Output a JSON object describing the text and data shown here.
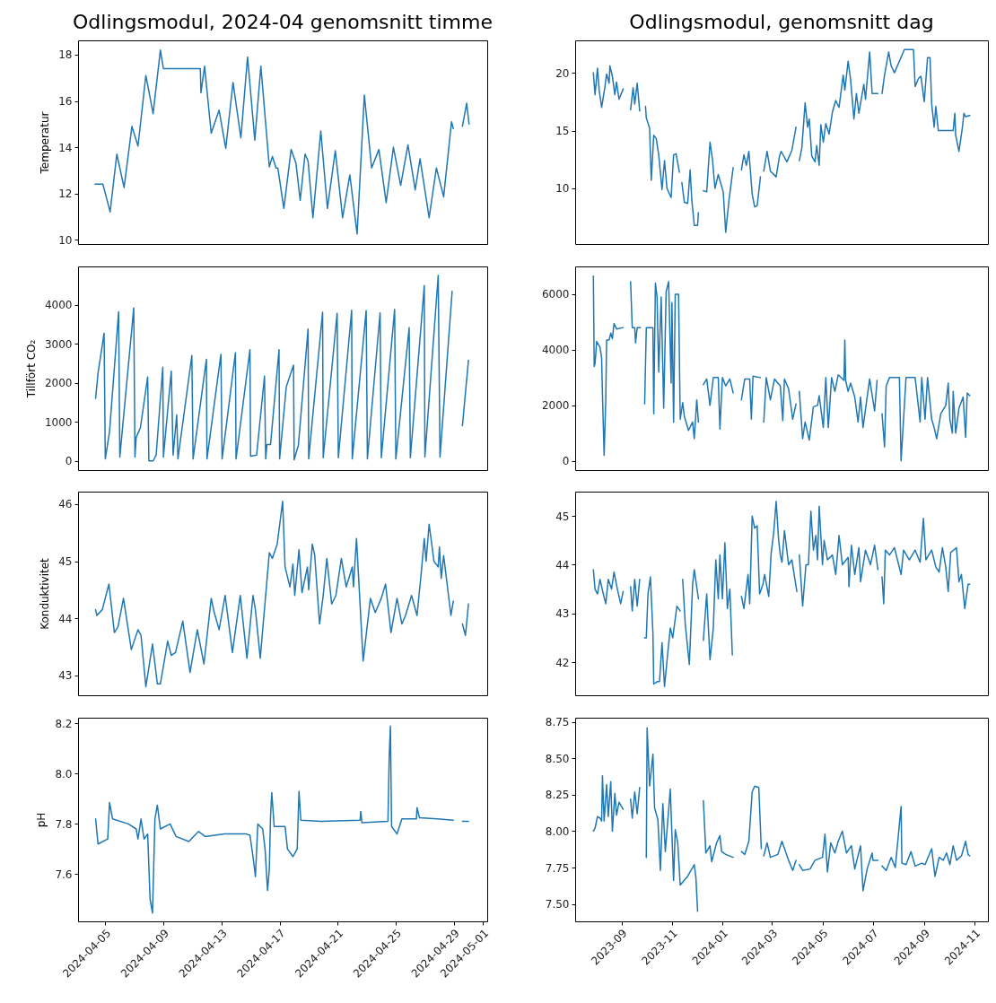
{
  "chart_data": [
    {
      "type": "line",
      "title": "Odlingsmodul, 2024-04 genomsnitt timme",
      "ylabel": "Temperatur",
      "tick_labels": "y",
      "xlim": [
        "2024-04-03T03:00",
        "2024-05-01T07:00"
      ],
      "ylim": [
        9.81,
        18.62
      ],
      "yticks": [
        10,
        12,
        14,
        16,
        18
      ],
      "x": [
        "2024-04-04T07:00",
        "2024-04-04T20:00",
        "2024-04-05T08:00",
        "2024-04-05T19:00",
        "2024-04-06T07:00",
        "2024-04-06T20:00",
        "2024-04-07T06:00",
        "2024-04-07T19:00",
        "2024-04-08T07:00",
        "2024-04-08T19:00",
        "2024-04-09T00:00",
        "2024-04-11T13:00",
        "2024-04-11T14:00",
        "2024-04-11T20:00",
        "2024-04-12T07:00",
        "2024-04-12T20:00",
        "2024-04-13T07:00",
        "2024-04-13T19:00",
        "2024-04-14T08:00",
        "2024-04-14T19:00",
        "2024-04-15T07:00",
        "2024-04-15T17:00",
        "2024-04-16T07:00",
        "2024-04-16T12:00",
        "2024-04-16T18:00",
        "2024-04-16T21:00",
        "2024-04-17T07:00",
        "2024-04-17T19:00",
        "2024-04-18T03:00",
        "2024-04-18T10:00",
        "2024-04-18T18:00",
        "2024-04-18T23:00",
        "2024-04-19T07:00",
        "2024-04-19T20:00",
        "2024-04-20T07:00",
        "2024-04-20T20:00",
        "2024-04-21T08:00",
        "2024-04-21T20:00",
        "2024-04-22T08:00",
        "2024-04-22T20:00",
        "2024-04-23T08:00",
        "2024-04-23T20:00",
        "2024-04-24T08:00",
        "2024-04-24T20:00",
        "2024-04-25T08:00",
        "2024-04-25T20:00",
        "2024-04-26T08:00",
        "2024-04-26T16:00",
        "2024-04-27T07:00",
        "2024-04-27T19:00",
        "2024-04-28T07:00",
        "2024-04-28T20:00",
        "2024-04-28T23:00",
        "2024-04-29T06:00",
        "2024-04-29T14:00",
        "2024-04-29T21:00",
        "2024-04-30T01:00"
      ],
      "series": [
        {
          "color": "#1f77b4",
          "values": [
            12.4,
            12.4,
            11.2,
            13.7,
            12.25,
            14.9,
            14.05,
            17.1,
            15.45,
            18.2,
            17.4,
            17.4,
            16.35,
            17.5,
            14.6,
            15.6,
            13.95,
            16.8,
            14.4,
            17.9,
            14.3,
            17.5,
            13.15,
            13.6,
            13.1,
            13.1,
            11.35,
            13.9,
            13.3,
            11.7,
            13.7,
            13.4,
            10.95,
            14.7,
            11.35,
            13.85,
            10.95,
            12.8,
            10.25,
            16.25,
            13.1,
            13.9,
            11.6,
            14.0,
            12.35,
            14.1,
            12.15,
            13.5,
            10.95,
            13.1,
            11.85,
            15.1,
            14.8,
            null,
            14.9,
            15.9,
            15.0
          ]
        }
      ]
    },
    {
      "type": "line",
      "title": "Odlingsmodul, genomsnitt dag",
      "tick_labels": "y",
      "xlim": [
        "2023-07-07",
        "2024-11-17"
      ],
      "ylim": [
        5.19,
        22.8
      ],
      "yticks": [
        10,
        15,
        20
      ],
      "x": [
        "2023-07-29",
        "2023-07-31",
        "2023-08-03",
        "2023-08-05",
        "2023-08-08",
        "2023-08-12",
        "2023-08-14",
        "2023-08-17",
        "2023-08-18",
        "2023-08-21",
        "2023-08-24",
        "2023-08-26",
        "2023-08-29",
        "2023-09-03",
        "2023-09-08",
        "2023-09-12",
        "2023-09-15",
        "2023-09-17",
        "2023-09-20",
        "2023-09-23",
        "2023-09-27",
        "2023-09-30",
        "2023-10-01",
        "2023-10-05",
        "2023-10-07",
        "2023-10-10",
        "2023-10-13",
        "2023-10-16",
        "2023-10-20",
        "2023-10-23",
        "2023-10-26",
        "2023-10-31",
        "2023-11-03",
        "2023-11-06",
        "2023-11-10",
        "2023-11-11",
        "2023-11-13",
        "2023-11-16",
        "2023-11-20",
        "2023-11-23",
        "2023-11-25",
        "2023-11-28",
        "2023-12-02",
        "2023-12-03",
        "2023-12-06",
        "2023-12-09",
        "2023-12-13",
        "2023-12-17",
        "2023-12-20",
        "2023-12-23",
        "2023-12-27",
        "2024-01-02",
        "2024-01-05",
        "2024-01-09",
        "2024-01-14",
        "2024-01-20",
        "2024-01-24",
        "2024-01-27",
        "2024-01-30",
        "2024-02-02",
        "2024-02-06",
        "2024-02-09",
        "2024-02-12",
        "2024-02-16",
        "2024-02-18",
        "2024-02-20",
        "2024-02-24",
        "2024-02-28",
        "2024-03-06",
        "2024-03-10",
        "2024-03-12",
        "2024-03-19",
        "2024-03-25",
        "2024-03-30",
        "2024-04-01",
        "2024-04-03",
        "2024-04-06",
        "2024-04-10",
        "2024-04-13",
        "2024-04-15",
        "2024-04-18",
        "2024-04-22",
        "2024-04-24",
        "2024-04-27",
        "2024-04-29",
        "2024-05-02",
        "2024-05-05",
        "2024-05-09",
        "2024-05-13",
        "2024-05-17",
        "2024-05-21",
        "2024-05-26",
        "2024-05-28",
        "2024-06-01",
        "2024-06-04",
        "2024-06-08",
        "2024-06-11",
        "2024-06-14",
        "2024-06-20",
        "2024-06-22",
        "2024-06-27",
        "2024-06-30",
        "2024-07-07",
        "2024-07-10",
        "2024-07-12",
        "2024-07-15",
        "2024-07-20",
        "2024-07-23",
        "2024-07-27",
        "2024-07-30",
        "2024-08-05",
        "2024-08-08",
        "2024-08-19",
        "2024-08-21",
        "2024-08-25",
        "2024-08-28",
        "2024-09-01",
        "2024-09-05",
        "2024-09-08",
        "2024-09-10",
        "2024-09-13",
        "2024-09-15",
        "2024-09-18",
        "2024-10-06",
        "2024-10-08",
        "2024-10-09",
        "2024-10-13",
        "2024-10-17",
        "2024-10-19",
        "2024-10-21",
        "2024-10-26"
      ],
      "series": [
        {
          "color": "#1f77b4",
          "values": [
            20.0,
            18.1,
            20.4,
            18.5,
            17.0,
            18.8,
            19.9,
            19.1,
            20.6,
            19.7,
            18.1,
            19.2,
            17.7,
            18.6,
            null,
            16.8,
            18.7,
            17.3,
            19.1,
            16.7,
            null,
            17.1,
            16.1,
            15.2,
            10.7,
            14.6,
            14.3,
            12.9,
            9.9,
            12.4,
            10.0,
            9.2,
            12.9,
            13.0,
            11.4,
            null,
            10.5,
            8.8,
            8.7,
            11.6,
            9.0,
            6.8,
            6.8,
            7.9,
            null,
            9.8,
            9.7,
            14.0,
            12.5,
            10.0,
            11.2,
            9.7,
            6.2,
            9.0,
            11.8,
            null,
            11.6,
            12.9,
            12.0,
            13.2,
            9.5,
            8.4,
            8.5,
            11.0,
            null,
            11.5,
            13.2,
            11.5,
            11.0,
            12.8,
            13.2,
            12.3,
            13.3,
            15.3,
            null,
            12.4,
            13.5,
            17.4,
            15.3,
            16.0,
            12.8,
            12.3,
            13.7,
            12.0,
            15.5,
            14.0,
            15.6,
            14.7,
            16.6,
            17.6,
            17.0,
            19.8,
            18.5,
            21.0,
            19.4,
            16.0,
            18.2,
            16.5,
            19.0,
            17.7,
            21.8,
            18.2,
            18.2,
            null,
            18.2,
            19.8,
            21.8,
            20.6,
            20.0,
            20.5,
            21.5,
            22.0,
            22.0,
            18.8,
            19.5,
            19.7,
            17.5,
            21.3,
            21.3,
            17.3,
            15.3,
            17.1,
            15.0,
            15.0,
            16.5,
            14.6,
            13.2,
            15.2,
            16.5,
            16.2,
            16.3
          ]
        }
      ]
    },
    {
      "type": "line",
      "ylabel": "Tillfört CO₂",
      "tick_labels": "y",
      "xlim": [
        "2024-04-03T03:00",
        "2024-05-01T07:00"
      ],
      "ylim": [
        -236,
        4980
      ],
      "yticks": [
        0,
        1000,
        2000,
        3000,
        4000
      ],
      "x": [
        "2024-04-04T08:00",
        "2024-04-04T12:00",
        "2024-04-04T22:00",
        "2024-04-05T00:00",
        "2024-04-05T07:00",
        "2024-04-05T22:00",
        "2024-04-06T00:00",
        "2024-04-06T23:00",
        "2024-04-07T01:00",
        "2024-04-07T03:00",
        "2024-04-07T10:00",
        "2024-04-07T22:00",
        "2024-04-08T00:00",
        "2024-04-08T07:00",
        "2024-04-08T12:00",
        "2024-04-08T23:00",
        "2024-04-09T00:00",
        "2024-04-09T13:00",
        "2024-04-09T16:00",
        "2024-04-09T22:00",
        "2024-04-10T00:00",
        "2024-04-10T23:00",
        "2024-04-11T01:00",
        "2024-04-11T23:00",
        "2024-04-12T00:00",
        "2024-04-12T23:00",
        "2024-04-13T01:00",
        "2024-04-13T23:00",
        "2024-04-14T00:00",
        "2024-04-14T23:00",
        "2024-04-15T00:00",
        "2024-04-15T10:00",
        "2024-04-15T23:00",
        "2024-04-16T01:00",
        "2024-04-16T03:00",
        "2024-04-16T09:00",
        "2024-04-16T23:00",
        "2024-04-17T00:00",
        "2024-04-17T11:00",
        "2024-04-17T23:00",
        "2024-04-18T00:00",
        "2024-04-18T07:00",
        "2024-04-18T23:00",
        "2024-04-19T00:00",
        "2024-04-19T23:00",
        "2024-04-20T00:00",
        "2024-04-20T23:00",
        "2024-04-21T01:00",
        "2024-04-21T23:00",
        "2024-04-22T00:00",
        "2024-04-22T23:00",
        "2024-04-23T01:00",
        "2024-04-23T22:00",
        "2024-04-24T00:00",
        "2024-04-24T22:00",
        "2024-04-25T00:00",
        "2024-04-25T22:00",
        "2024-04-26T00:00",
        "2024-04-26T23:00",
        "2024-04-27T00:00",
        "2024-04-27T22:00",
        "2024-04-28T01:00",
        "2024-04-28T21:00",
        "2024-04-29T06:00",
        "2024-04-29T14:00",
        "2024-04-30T00:00"
      ],
      "series": [
        {
          "color": "#1f77b4",
          "values": [
            1600,
            2250,
            3270,
            50,
            750,
            3820,
            100,
            3920,
            100,
            600,
            850,
            2150,
            0,
            0,
            150,
            2400,
            100,
            2300,
            150,
            1180,
            50,
            2700,
            50,
            2600,
            50,
            2730,
            50,
            2770,
            50,
            2850,
            120,
            150,
            2170,
            50,
            420,
            420,
            2850,
            50,
            1900,
            2450,
            30,
            400,
            3380,
            50,
            3810,
            80,
            3780,
            80,
            3860,
            50,
            3850,
            50,
            3790,
            80,
            3880,
            50,
            3410,
            80,
            4490,
            100,
            4750,
            100,
            4340,
            null,
            900,
            2580
          ]
        }
      ]
    },
    {
      "type": "line",
      "tick_labels": "y",
      "xlim": [
        "2023-07-07",
        "2024-11-17"
      ],
      "ylim": [
        -330,
        7000
      ],
      "yticks": [
        0,
        2000,
        4000,
        6000
      ],
      "x": [
        "2023-07-29",
        "2023-07-30",
        "2023-07-31",
        "2023-08-02",
        "2023-08-06",
        "2023-08-08",
        "2023-08-09",
        "2023-08-11",
        "2023-08-13",
        "2023-08-14",
        "2023-08-17",
        "2023-08-19",
        "2023-08-21",
        "2023-08-23",
        "2023-08-26",
        "2023-09-03",
        "2023-09-10",
        "2023-09-12",
        "2023-09-14",
        "2023-09-17",
        "2023-09-18",
        "2023-09-20",
        "2023-09-24",
        "2023-09-27",
        "2023-09-29",
        "2023-10-01",
        "2023-10-09",
        "2023-10-10",
        "2023-10-12",
        "2023-10-14",
        "2023-10-16",
        "2023-10-19",
        "2023-10-22",
        "2023-10-25",
        "2023-10-28",
        "2023-10-31",
        "2023-11-01",
        "2023-11-03",
        "2023-11-05",
        "2023-11-09",
        "2023-11-11",
        "2023-11-14",
        "2023-11-16",
        "2023-11-21",
        "2023-11-26",
        "2023-11-28",
        "2023-12-01",
        "2023-12-03",
        "2023-12-06",
        "2023-12-09",
        "2023-12-13",
        "2023-12-17",
        "2023-12-21",
        "2023-12-27",
        "2023-12-29",
        "2024-01-01",
        "2024-01-05",
        "2024-01-10",
        "2024-01-14",
        "2024-01-20",
        "2024-01-24",
        "2024-01-28",
        "2024-02-03",
        "2024-02-05",
        "2024-02-07",
        "2024-02-16",
        "2024-02-18",
        "2024-02-20",
        "2024-02-23",
        "2024-02-28",
        "2024-03-04",
        "2024-03-11",
        "2024-03-14",
        "2024-03-16",
        "2024-03-21",
        "2024-03-26",
        "2024-03-30",
        "2024-04-01",
        "2024-04-03",
        "2024-04-07",
        "2024-04-10",
        "2024-04-15",
        "2024-04-20",
        "2024-04-25",
        "2024-04-27",
        "2024-05-02",
        "2024-05-05",
        "2024-05-08",
        "2024-05-12",
        "2024-05-16",
        "2024-05-20",
        "2024-05-27",
        "2024-05-28",
        "2024-05-29",
        "2024-06-01",
        "2024-06-04",
        "2024-06-09",
        "2024-06-13",
        "2024-06-16",
        "2024-06-19",
        "2024-06-24",
        "2024-06-27",
        "2024-07-03",
        "2024-07-06",
        "2024-07-09",
        "2024-07-12",
        "2024-07-15",
        "2024-07-17",
        "2024-07-21",
        "2024-08-02",
        "2024-08-04",
        "2024-08-07",
        "2024-08-10",
        "2024-08-21",
        "2024-08-27",
        "2024-08-29",
        "2024-09-02",
        "2024-09-05",
        "2024-09-10",
        "2024-09-13",
        "2024-09-16",
        "2024-09-21",
        "2024-09-27",
        "2024-09-30",
        "2024-10-02",
        "2024-10-05",
        "2024-10-06",
        "2024-10-09",
        "2024-10-13",
        "2024-10-18",
        "2024-10-21",
        "2024-10-23",
        "2024-10-26"
      ],
      "series": [
        {
          "color": "#1f77b4",
          "values": [
            6650,
            3400,
            3500,
            4300,
            4100,
            3700,
            2400,
            200,
            2200,
            4350,
            4350,
            4600,
            4400,
            4950,
            4750,
            4800,
            null,
            6450,
            4800,
            4800,
            4250,
            4800,
            4800,
            null,
            2050,
            4800,
            4800,
            1700,
            6400,
            5900,
            3200,
            5900,
            1900,
            6100,
            6450,
            2800,
            5700,
            1400,
            6000,
            6000,
            1500,
            2100,
            1600,
            1100,
            1400,
            800,
            2200,
            1400,
            null,
            2750,
            2950,
            2000,
            3000,
            3000,
            1150,
            3000,
            2700,
            2950,
            2450,
            null,
            2200,
            2950,
            2950,
            1500,
            3050,
            3000,
            null,
            1400,
            3000,
            2200,
            2950,
            2700,
            1450,
            2950,
            2600,
            1500,
            2050,
            null,
            2500,
            800,
            1400,
            750,
            1950,
            2000,
            2350,
            1200,
            3000,
            1200,
            3000,
            2500,
            3100,
            2900,
            4350,
            2900,
            2500,
            2800,
            2300,
            1400,
            2300,
            1200,
            2300,
            2950,
            1800,
            2900,
            null,
            1700,
            500,
            2700,
            3000,
            3000,
            0,
            1500,
            3000,
            3000,
            1400,
            3000,
            1500,
            3000,
            1500,
            1200,
            800,
            1700,
            2000,
            2800,
            1500,
            1000,
            2500,
            1000,
            1900,
            2300,
            850,
            2450,
            2350
          ]
        }
      ]
    },
    {
      "type": "line",
      "ylabel": "Konduktivitet",
      "tick_labels": "y",
      "xlim": [
        "2024-04-03T03:00",
        "2024-05-01T07:00"
      ],
      "ylim": [
        42.65,
        46.22
      ],
      "yticks": [
        43,
        44,
        45,
        46
      ],
      "x": [
        "2024-04-04T08:00",
        "2024-04-04T10:00",
        "2024-04-04T19:00",
        "2024-04-05T06:00",
        "2024-04-05T15:00",
        "2024-04-05T21:00",
        "2024-04-06T06:00",
        "2024-04-06T19:00",
        "2024-04-07T06:00",
        "2024-04-07T11:00",
        "2024-04-07T19:00",
        "2024-04-08T06:00",
        "2024-04-08T14:00",
        "2024-04-08T19:00",
        "2024-04-09T07:00",
        "2024-04-09T13:00",
        "2024-04-09T20:00",
        "2024-04-10T08:00",
        "2024-04-10T20:00",
        "2024-04-11T08:00",
        "2024-04-11T19:00",
        "2024-04-12T07:00",
        "2024-04-12T12:00",
        "2024-04-12T20:00",
        "2024-04-13T06:00",
        "2024-04-13T18:00",
        "2024-04-14T07:00",
        "2024-04-14T18:00",
        "2024-04-15T04:00",
        "2024-04-15T08:00",
        "2024-04-15T16:00",
        "2024-04-16T07:00",
        "2024-04-16T12:00",
        "2024-04-16T20:00",
        "2024-04-17T05:00",
        "2024-04-17T09:00",
        "2024-04-17T17:00",
        "2024-04-17T22:00",
        "2024-04-18T01:00",
        "2024-04-18T08:00",
        "2024-04-18T13:00",
        "2024-04-18T22:00",
        "2024-04-19T00:00",
        "2024-04-19T06:00",
        "2024-04-19T10:00",
        "2024-04-19T18:00",
        "2024-04-20T00:00",
        "2024-04-20T06:00",
        "2024-04-20T14:00",
        "2024-04-20T21:00",
        "2024-04-21T06:00",
        "2024-04-21T14:00",
        "2024-04-22T00:00",
        "2024-04-22T02:00",
        "2024-04-22T07:00",
        "2024-04-22T18:00",
        "2024-04-23T06:00",
        "2024-04-23T14:00",
        "2024-04-24T00:00",
        "2024-04-24T07:00",
        "2024-04-24T16:00",
        "2024-04-25T02:00",
        "2024-04-25T10:00",
        "2024-04-25T16:00",
        "2024-04-26T02:00",
        "2024-04-26T11:00",
        "2024-04-26T18:00",
        "2024-04-26T23:00",
        "2024-04-27T02:00",
        "2024-04-27T07:00",
        "2024-04-27T15:00",
        "2024-04-27T22:00",
        "2024-04-28T00:00",
        "2024-04-28T03:00",
        "2024-04-28T07:00",
        "2024-04-28T19:00",
        "2024-04-28T23:00",
        "2024-04-29T06:00",
        "2024-04-29T14:00",
        "2024-04-29T19:00",
        "2024-04-30T00:00"
      ],
      "series": [
        {
          "color": "#1f77b4",
          "values": [
            44.15,
            44.05,
            44.15,
            44.6,
            43.75,
            43.85,
            44.35,
            43.45,
            43.8,
            43.7,
            42.8,
            43.55,
            42.85,
            42.85,
            43.6,
            43.35,
            43.4,
            43.95,
            43.05,
            43.8,
            43.2,
            44.35,
            44.1,
            43.8,
            44.4,
            43.4,
            44.4,
            43.3,
            44.4,
            44.15,
            43.3,
            45.15,
            45.05,
            45.3,
            46.05,
            44.9,
            44.55,
            44.95,
            44.4,
            45.2,
            44.45,
            44.9,
            44.5,
            45.3,
            45.1,
            43.9,
            44.4,
            45.05,
            44.25,
            44.4,
            45.05,
            44.55,
            44.9,
            44.55,
            45.4,
            43.25,
            44.35,
            44.1,
            44.35,
            44.6,
            43.75,
            44.35,
            43.9,
            44.05,
            44.4,
            44.05,
            44.8,
            45.4,
            45.0,
            45.65,
            45.0,
            44.9,
            45.25,
            44.7,
            45.1,
            44.05,
            44.3,
            null,
            43.9,
            43.7,
            44.25
          ]
        }
      ]
    },
    {
      "type": "line",
      "tick_labels": "y",
      "xlim": [
        "2023-07-07",
        "2024-11-17"
      ],
      "ylim": [
        41.32,
        45.5
      ],
      "yticks": [
        42,
        43,
        44,
        45
      ],
      "x": [
        "2023-07-29",
        "2023-07-31",
        "2023-08-03",
        "2023-08-06",
        "2023-08-10",
        "2023-08-13",
        "2023-08-16",
        "2023-08-20",
        "2023-08-23",
        "2023-08-27",
        "2023-08-31",
        "2023-09-03",
        "2023-09-08",
        "2023-09-12",
        "2023-09-14",
        "2023-09-17",
        "2023-09-20",
        "2023-09-23",
        "2023-09-26",
        "2023-09-29",
        "2023-10-01",
        "2023-10-03",
        "2023-10-06",
        "2023-10-09",
        "2023-10-10",
        "2023-10-14",
        "2023-10-17",
        "2023-10-20",
        "2023-10-23",
        "2023-10-27",
        "2023-10-30",
        "2023-11-02",
        "2023-11-07",
        "2023-11-11",
        "2023-11-12",
        "2023-11-14",
        "2023-11-17",
        "2023-11-22",
        "2023-11-26",
        "2023-11-28",
        "2023-12-03",
        "2023-12-06",
        "2023-12-09",
        "2023-12-13",
        "2023-12-17",
        "2023-12-21",
        "2023-12-24",
        "2023-12-27",
        "2023-12-29",
        "2024-01-01",
        "2024-01-04",
        "2024-01-07",
        "2024-01-10",
        "2024-01-13",
        "2024-01-18",
        "2024-01-24",
        "2024-01-27",
        "2024-02-01",
        "2024-02-03",
        "2024-02-06",
        "2024-02-09",
        "2024-02-12",
        "2024-02-15",
        "2024-02-19",
        "2024-02-21",
        "2024-02-26",
        "2024-02-29",
        "2024-03-03",
        "2024-03-06",
        "2024-03-09",
        "2024-03-11",
        "2024-03-13",
        "2024-03-16",
        "2024-03-21",
        "2024-03-25",
        "2024-03-31",
        "2024-04-02",
        "2024-04-03",
        "2024-04-07",
        "2024-04-11",
        "2024-04-14",
        "2024-04-17",
        "2024-04-20",
        "2024-04-23",
        "2024-04-25",
        "2024-04-27",
        "2024-05-01",
        "2024-05-03",
        "2024-05-07",
        "2024-05-13",
        "2024-05-17",
        "2024-05-21",
        "2024-05-25",
        "2024-06-01",
        "2024-06-02",
        "2024-06-05",
        "2024-06-09",
        "2024-06-14",
        "2024-06-16",
        "2024-06-22",
        "2024-06-28",
        "2024-07-03",
        "2024-07-07",
        "2024-07-09",
        "2024-07-12",
        "2024-07-14",
        "2024-07-16",
        "2024-07-21",
        "2024-07-27",
        "2024-08-04",
        "2024-08-07",
        "2024-08-14",
        "2024-08-21",
        "2024-08-27",
        "2024-08-31",
        "2024-09-03",
        "2024-09-10",
        "2024-09-15",
        "2024-09-19",
        "2024-09-23",
        "2024-09-27",
        "2024-09-30",
        "2024-10-03",
        "2024-10-10",
        "2024-10-13",
        "2024-10-16",
        "2024-10-20",
        "2024-10-24",
        "2024-10-26"
      ],
      "series": [
        {
          "color": "#1f77b4",
          "values": [
            43.9,
            43.5,
            43.4,
            43.7,
            43.4,
            43.2,
            43.7,
            43.5,
            43.85,
            43.5,
            43.2,
            43.45,
            null,
            43.55,
            43.05,
            43.7,
            43.15,
            43.7,
            null,
            42.5,
            42.5,
            43.4,
            43.75,
            42.6,
            41.55,
            41.6,
            41.6,
            42.4,
            41.5,
            42.2,
            42.7,
            42.5,
            43.15,
            43.05,
            null,
            43.7,
            42.8,
            41.95,
            43.6,
            43.9,
            43.3,
            null,
            42.45,
            43.4,
            42.05,
            42.7,
            44.1,
            43.3,
            44.2,
            43.3,
            44.45,
            43.1,
            43.5,
            42.15,
            null,
            43.35,
            43.1,
            43.8,
            43.2,
            45.0,
            44.75,
            44.8,
            43.4,
            43.6,
            43.8,
            43.35,
            44.25,
            44.65,
            45.3,
            44.5,
            44.2,
            44.05,
            44.7,
            44.0,
            44.1,
            43.45,
            null,
            44.2,
            43.15,
            44.0,
            44.0,
            45.1,
            44.3,
            44.6,
            44.1,
            45.2,
            44.0,
            44.5,
            44.1,
            44.2,
            43.8,
            44.6,
            44.0,
            44.15,
            43.55,
            44.4,
            43.8,
            44.35,
            43.65,
            44.3,
            44.0,
            44.4,
            43.9,
            null,
            43.75,
            43.2,
            44.3,
            44.2,
            44.35,
            43.8,
            44.3,
            44.1,
            44.3,
            44.05,
            44.95,
            44.1,
            44.3,
            43.95,
            43.85,
            44.35,
            43.95,
            43.45,
            44.25,
            44.35,
            43.65,
            43.8,
            43.1,
            43.6,
            43.6
          ]
        }
      ]
    },
    {
      "type": "line",
      "ylabel": "pH",
      "xlim": [
        "2024-04-03T03:00",
        "2024-05-01T07:00"
      ],
      "xticks": [
        "2024-04-05",
        "2024-04-09",
        "2024-04-13",
        "2024-04-17",
        "2024-04-21",
        "2024-04-25",
        "2024-04-29",
        "2024-05-01"
      ],
      "ylim": [
        7.412,
        8.223
      ],
      "yticks": [
        7.6,
        7.8,
        {
          "value": 8,
          "label": "8.0"
        },
        8.2
      ],
      "x": [
        "2024-04-04T08:00",
        "2024-04-04T12:00",
        "2024-04-05T04:00",
        "2024-04-05T07:00",
        "2024-04-05T12:00",
        "2024-04-06T14:00",
        "2024-04-07T03:00",
        "2024-04-07T06:00",
        "2024-04-07T11:00",
        "2024-04-07T16:00",
        "2024-04-07T22:00",
        "2024-04-08T02:00",
        "2024-04-08T06:00",
        "2024-04-08T10:00",
        "2024-04-08T14:00",
        "2024-04-08T19:00",
        "2024-04-09T11:00",
        "2024-04-09T21:00",
        "2024-04-10T18:00",
        "2024-04-11T10:00",
        "2024-04-11T21:00",
        "2024-04-13T05:00",
        "2024-04-14T17:00",
        "2024-04-14T23:00",
        "2024-04-15T04:00",
        "2024-04-15T08:00",
        "2024-04-15T12:00",
        "2024-04-15T20:00",
        "2024-04-16T00:00",
        "2024-04-16T04:00",
        "2024-04-16T07:00",
        "2024-04-16T09:00",
        "2024-04-16T11:00",
        "2024-04-16T15:00",
        "2024-04-17T09:00",
        "2024-04-17T13:00",
        "2024-04-17T22:00",
        "2024-04-18T05:00",
        "2024-04-18T08:00",
        "2024-04-18T11:00",
        "2024-04-19T20:00",
        "2024-04-22T13:00",
        "2024-04-22T14:00",
        "2024-04-22T16:00",
        "2024-04-24T11:00",
        "2024-04-24T13:00",
        "2024-04-24T15:00",
        "2024-04-24T17:00",
        "2024-04-25T02:00",
        "2024-04-25T10:00",
        "2024-04-26T10:00",
        "2024-04-26T11:00",
        "2024-04-26T15:00",
        "2024-04-27T20:00",
        "2024-04-28T23:00",
        "2024-04-29T06:00",
        "2024-04-29T14:00",
        "2024-04-30T00:00"
      ],
      "series": [
        {
          "color": "#1f77b4",
          "values": [
            7.82,
            7.72,
            7.74,
            7.885,
            7.82,
            7.8,
            7.78,
            7.74,
            7.82,
            7.74,
            7.76,
            7.5,
            7.445,
            7.82,
            7.875,
            7.78,
            7.8,
            7.75,
            7.73,
            7.77,
            7.75,
            7.76,
            7.76,
            7.755,
            7.67,
            7.59,
            7.8,
            7.78,
            7.7,
            7.535,
            7.62,
            7.83,
            7.925,
            7.79,
            7.79,
            7.7,
            7.67,
            7.7,
            7.93,
            7.815,
            7.81,
            7.815,
            7.85,
            7.805,
            7.81,
            8.06,
            8.19,
            7.79,
            7.76,
            7.82,
            7.82,
            7.865,
            7.825,
            7.82,
            7.815,
            null,
            7.81,
            7.81
          ]
        }
      ]
    },
    {
      "type": "line",
      "xlim": [
        "2023-07-07",
        "2024-11-17"
      ],
      "xticks": [
        "2023-09",
        "2023-11",
        "2024-01",
        "2024-03",
        "2024-05",
        "2024-07",
        "2024-09",
        "2024-11"
      ],
      "ylim": [
        7.38,
        8.78
      ],
      "yticks": [
        {
          "value": 7.5,
          "label": "7.50"
        },
        7.75,
        {
          "value": 8,
          "label": "8.00"
        },
        8.25,
        {
          "value": 8.5,
          "label": "8.50"
        },
        8.75
      ],
      "x": [
        "2023-07-29",
        "2023-07-31",
        "2023-08-03",
        "2023-08-06",
        "2023-08-08",
        "2023-08-09",
        "2023-08-11",
        "2023-08-14",
        "2023-08-16",
        "2023-08-19",
        "2023-08-21",
        "2023-08-24",
        "2023-08-26",
        "2023-08-29",
        "2023-09-03",
        "2023-09-08",
        "2023-09-12",
        "2023-09-14",
        "2023-09-17",
        "2023-09-20",
        "2023-09-23",
        "2023-09-27",
        "2023-10-01",
        "2023-10-02",
        "2023-10-05",
        "2023-10-09",
        "2023-10-11",
        "2023-10-15",
        "2023-10-18",
        "2023-10-21",
        "2023-10-24",
        "2023-10-30",
        "2023-11-03",
        "2023-11-05",
        "2023-11-08",
        "2023-11-11",
        "2023-11-20",
        "2023-11-28",
        "2023-11-30",
        "2023-12-02",
        "2023-12-05",
        "2023-12-09",
        "2023-12-12",
        "2023-12-17",
        "2023-12-19",
        "2023-12-25",
        "2023-12-29",
        "2023-12-31",
        "2024-01-05",
        "2024-01-14",
        "2024-01-19",
        "2024-01-24",
        "2024-01-28",
        "2024-02-02",
        "2024-02-06",
        "2024-02-09",
        "2024-02-14",
        "2024-02-17",
        "2024-02-19",
        "2024-02-20",
        "2024-02-24",
        "2024-02-28",
        "2024-03-08",
        "2024-03-13",
        "2024-03-21",
        "2024-03-26",
        "2024-03-30",
        "2024-04-01",
        "2024-04-03",
        "2024-04-07",
        "2024-04-16",
        "2024-04-22",
        "2024-05-01",
        "2024-05-04",
        "2024-05-07",
        "2024-05-11",
        "2024-05-16",
        "2024-05-20",
        "2024-05-25",
        "2024-05-30",
        "2024-06-05",
        "2024-06-09",
        "2024-06-16",
        "2024-06-19",
        "2024-06-24",
        "2024-06-30",
        "2024-07-01",
        "2024-07-07",
        "2024-07-09",
        "2024-07-12",
        "2024-07-17",
        "2024-07-23",
        "2024-07-28",
        "2024-08-04",
        "2024-08-05",
        "2024-08-10",
        "2024-08-16",
        "2024-08-21",
        "2024-08-29",
        "2024-09-02",
        "2024-09-10",
        "2024-09-14",
        "2024-09-19",
        "2024-09-24",
        "2024-09-28",
        "2024-10-02",
        "2024-10-06",
        "2024-10-10",
        "2024-10-16",
        "2024-10-21",
        "2024-10-24",
        "2024-10-26"
      ],
      "series": [
        {
          "color": "#1f77b4",
          "values": [
            8.0,
            8.02,
            8.1,
            8.09,
            8.07,
            8.38,
            8.07,
            8.32,
            8.1,
            8.34,
            8.0,
            8.26,
            8.11,
            8.2,
            8.15,
            null,
            8.22,
            8.09,
            8.27,
            8.12,
            8.3,
            null,
            7.82,
            8.71,
            8.31,
            8.53,
            8.16,
            8.08,
            7.73,
            8.19,
            7.86,
            8.29,
            7.66,
            8.01,
            7.92,
            7.63,
            7.69,
            7.77,
            7.68,
            7.45,
            null,
            8.21,
            7.85,
            7.9,
            7.79,
            7.92,
            7.97,
            7.86,
            7.84,
            7.82,
            null,
            7.86,
            7.84,
            7.93,
            8.27,
            8.31,
            8.3,
            7.88,
            null,
            7.83,
            7.92,
            7.82,
            7.84,
            7.93,
            7.8,
            7.73,
            7.8,
            null,
            7.77,
            7.73,
            7.74,
            7.8,
            7.82,
            7.98,
            7.72,
            7.92,
            7.85,
            7.93,
            8.0,
            7.85,
            7.9,
            7.74,
            7.9,
            7.59,
            7.74,
            7.85,
            7.8,
            7.8,
            null,
            7.76,
            7.73,
            7.82,
            7.75,
            8.17,
            7.78,
            7.77,
            7.86,
            7.76,
            7.78,
            7.77,
            7.88,
            7.69,
            7.82,
            7.8,
            7.85,
            7.77,
            7.9,
            7.8,
            7.83,
            7.93,
            7.84,
            7.83
          ]
        }
      ]
    }
  ]
}
